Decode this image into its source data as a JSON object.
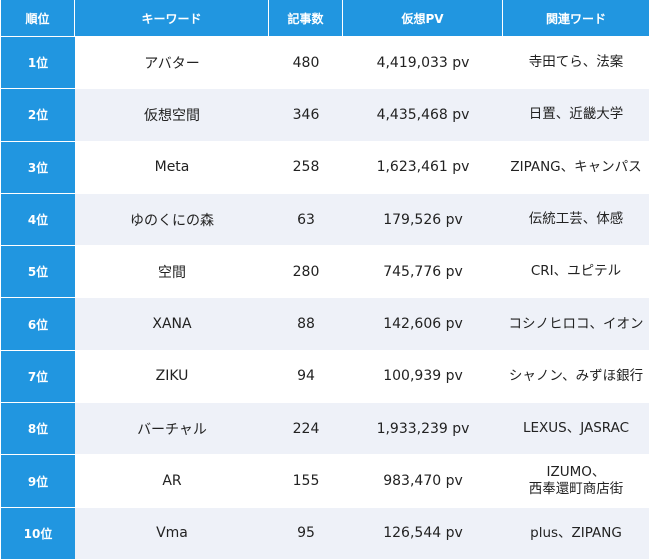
{
  "headers": {
    "rank": "順位",
    "keyword": "キーワード",
    "articles": "記事数",
    "pv": "仮想PV",
    "related": "関連ワード"
  },
  "rows": [
    {
      "rank": "1位",
      "keyword": "アバター",
      "articles": "480",
      "pv": "4,419,033 pv",
      "related": "寺田てら、法案"
    },
    {
      "rank": "2位",
      "keyword": "仮想空間",
      "articles": "346",
      "pv": "4,435,468 pv",
      "related": "日置、近畿大学"
    },
    {
      "rank": "3位",
      "keyword": "Meta",
      "articles": "258",
      "pv": "1,623,461 pv",
      "related": "ZIPANG、キャンパス"
    },
    {
      "rank": "4位",
      "keyword": "ゆのくにの森",
      "articles": "63",
      "pv": "179,526 pv",
      "related": "伝統工芸、体感"
    },
    {
      "rank": "5位",
      "keyword": "空間",
      "articles": "280",
      "pv": "745,776 pv",
      "related": "CRI、ユピテル"
    },
    {
      "rank": "6位",
      "keyword": "XANA",
      "articles": "88",
      "pv": "142,606 pv",
      "related": "コシノヒロコ、イオン"
    },
    {
      "rank": "7位",
      "keyword": "ZIKU",
      "articles": "94",
      "pv": "100,939 pv",
      "related": "シャノン、みずほ銀行"
    },
    {
      "rank": "8位",
      "keyword": "バーチャル",
      "articles": "224",
      "pv": "1,933,239 pv",
      "related": "LEXUS、JASRAC"
    },
    {
      "rank": "9位",
      "keyword": "AR",
      "articles": "155",
      "pv": "983,470 pv",
      "related": "IZUMO、\n西奉還町商店街"
    },
    {
      "rank": "10位",
      "keyword": "Vma",
      "articles": "95",
      "pv": "126,544 pv",
      "related": "plus、ZIPANG"
    }
  ]
}
